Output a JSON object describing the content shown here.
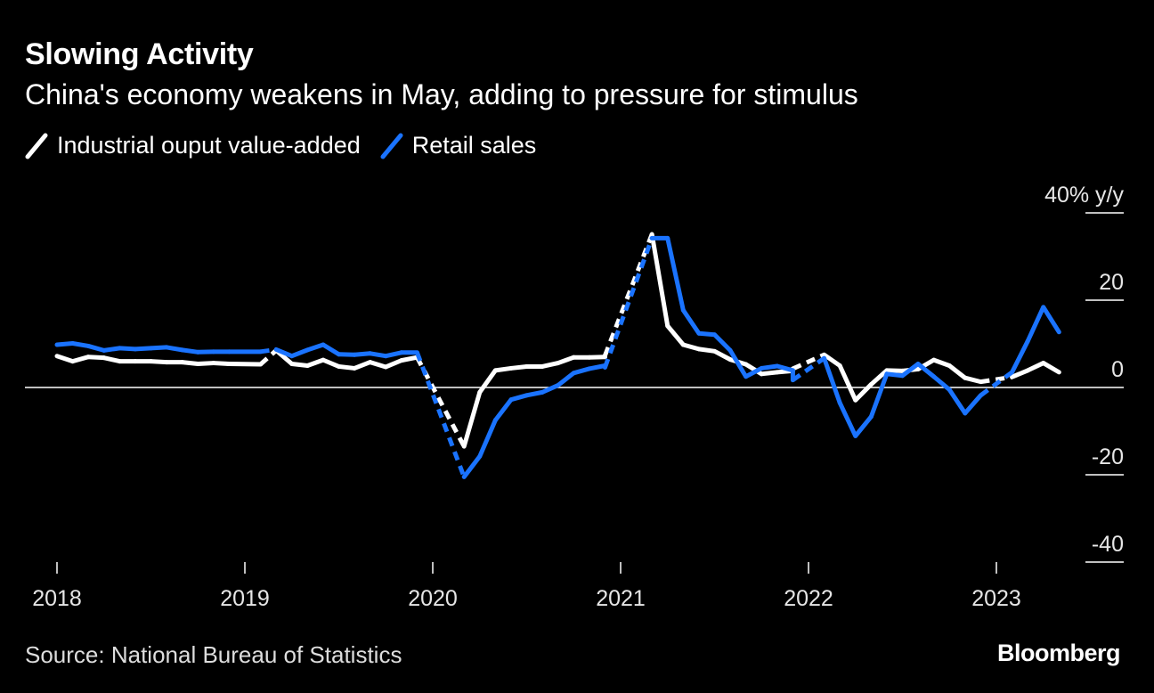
{
  "header": {
    "title": "Slowing Activity",
    "subtitle": "China's economy weakens in May, adding to pressure for stimulus"
  },
  "legend": [
    {
      "label": "Industrial ouput value-added",
      "color": "#ffffff"
    },
    {
      "label": "Retail sales",
      "color": "#1a73ff"
    }
  ],
  "footer": {
    "source": "Source: National Bureau of Statistics",
    "brand": "Bloomberg"
  },
  "chart_data": {
    "type": "line",
    "title": "Slowing Activity",
    "subtitle": "China's economy weakens in May, adding to pressure for stimulus",
    "ylabel_unit": "40% y/y",
    "ylim": [
      -40,
      40
    ],
    "yticks": [
      {
        "value": 40,
        "label": "40% y/y"
      },
      {
        "value": 20,
        "label": "20"
      },
      {
        "value": 0,
        "label": "0"
      },
      {
        "value": -20,
        "label": "-20"
      },
      {
        "value": -40,
        "label": "-40"
      }
    ],
    "xlim": [
      "2018-01",
      "2023-07"
    ],
    "xticks": [
      "2018",
      "2019",
      "2020",
      "2021",
      "2022",
      "2023"
    ],
    "legend_position": "top-left",
    "zero_line": true,
    "series": [
      {
        "name": "Industrial ouput value-added",
        "color": "#ffffff",
        "dashed_segments": [
          [
            "2019-02",
            "2019-03"
          ],
          [
            "2019-12",
            "2020-03"
          ],
          [
            "2020-12",
            "2021-03"
          ],
          [
            "2021-12",
            "2022-02"
          ],
          [
            "2022-12",
            "2023-02"
          ]
        ],
        "points": [
          [
            "2018-01",
            7.2
          ],
          [
            "2018-02",
            6.0
          ],
          [
            "2018-03",
            7.0
          ],
          [
            "2018-04",
            6.8
          ],
          [
            "2018-05",
            6.0
          ],
          [
            "2018-06",
            6.0
          ],
          [
            "2018-07",
            6.0
          ],
          [
            "2018-08",
            5.8
          ],
          [
            "2018-09",
            5.8
          ],
          [
            "2018-10",
            5.4
          ],
          [
            "2018-11",
            5.6
          ],
          [
            "2018-12",
            5.4
          ],
          [
            "2019-02",
            5.3
          ],
          [
            "2019-03",
            8.5
          ],
          [
            "2019-04",
            5.4
          ],
          [
            "2019-05",
            5.0
          ],
          [
            "2019-06",
            6.3
          ],
          [
            "2019-07",
            4.8
          ],
          [
            "2019-08",
            4.4
          ],
          [
            "2019-09",
            5.8
          ],
          [
            "2019-10",
            4.7
          ],
          [
            "2019-11",
            6.2
          ],
          [
            "2019-12",
            6.9
          ],
          [
            "2020-03",
            -13.5
          ],
          [
            "2020-04",
            -1.1
          ],
          [
            "2020-05",
            3.9
          ],
          [
            "2020-06",
            4.4
          ],
          [
            "2020-07",
            4.8
          ],
          [
            "2020-08",
            4.8
          ],
          [
            "2020-09",
            5.6
          ],
          [
            "2020-10",
            6.9
          ],
          [
            "2020-11",
            6.9
          ],
          [
            "2020-12",
            7.0
          ],
          [
            "2020-12",
            7.3
          ],
          [
            "2021-03",
            35.1
          ],
          [
            "2021-04",
            14.1
          ],
          [
            "2021-05",
            9.8
          ],
          [
            "2021-06",
            8.8
          ],
          [
            "2021-07",
            8.3
          ],
          [
            "2021-08",
            6.4
          ],
          [
            "2021-09",
            5.3
          ],
          [
            "2021-10",
            3.1
          ],
          [
            "2021-11",
            3.5
          ],
          [
            "2021-12",
            3.8
          ],
          [
            "2021-12",
            4.3
          ],
          [
            "2022-02",
            7.5
          ],
          [
            "2022-03",
            5.0
          ],
          [
            "2022-04",
            -2.9
          ],
          [
            "2022-05",
            0.7
          ],
          [
            "2022-06",
            3.9
          ],
          [
            "2022-07",
            3.8
          ],
          [
            "2022-08",
            4.2
          ],
          [
            "2022-09",
            6.3
          ],
          [
            "2022-10",
            5.0
          ],
          [
            "2022-11",
            2.2
          ],
          [
            "2022-12",
            1.3
          ],
          [
            "2023-02",
            2.4
          ],
          [
            "2023-03",
            3.9
          ],
          [
            "2023-04",
            5.6
          ],
          [
            "2023-05",
            3.5
          ]
        ]
      },
      {
        "name": "Retail sales",
        "color": "#1a73ff",
        "dashed_segments": [
          [
            "2019-02",
            "2019-03"
          ],
          [
            "2019-12",
            "2020-03"
          ],
          [
            "2020-12",
            "2021-03"
          ],
          [
            "2021-12",
            "2022-02"
          ],
          [
            "2022-12",
            "2023-02"
          ]
        ],
        "points": [
          [
            "2018-01",
            9.8
          ],
          [
            "2018-02",
            10.1
          ],
          [
            "2018-03",
            9.5
          ],
          [
            "2018-04",
            8.5
          ],
          [
            "2018-05",
            9.0
          ],
          [
            "2018-06",
            8.8
          ],
          [
            "2018-07",
            9.0
          ],
          [
            "2018-08",
            9.2
          ],
          [
            "2018-09",
            8.6
          ],
          [
            "2018-10",
            8.1
          ],
          [
            "2018-11",
            8.2
          ],
          [
            "2018-12",
            8.2
          ],
          [
            "2019-02",
            8.2
          ],
          [
            "2019-03",
            8.7
          ],
          [
            "2019-04",
            7.2
          ],
          [
            "2019-05",
            8.6
          ],
          [
            "2019-06",
            9.8
          ],
          [
            "2019-07",
            7.6
          ],
          [
            "2019-08",
            7.5
          ],
          [
            "2019-09",
            7.8
          ],
          [
            "2019-10",
            7.2
          ],
          [
            "2019-11",
            8.0
          ],
          [
            "2019-12",
            8.0
          ],
          [
            "2020-03",
            -20.5
          ],
          [
            "2020-04",
            -15.8
          ],
          [
            "2020-05",
            -7.5
          ],
          [
            "2020-06",
            -2.8
          ],
          [
            "2020-07",
            -1.8
          ],
          [
            "2020-08",
            -1.1
          ],
          [
            "2020-09",
            0.5
          ],
          [
            "2020-10",
            3.3
          ],
          [
            "2020-11",
            4.3
          ],
          [
            "2020-12",
            5.0
          ],
          [
            "2020-12",
            4.6
          ],
          [
            "2021-03",
            34.2
          ],
          [
            "2021-04",
            34.2
          ],
          [
            "2021-05",
            17.7
          ],
          [
            "2021-06",
            12.4
          ],
          [
            "2021-07",
            12.1
          ],
          [
            "2021-08",
            8.5
          ],
          [
            "2021-09",
            2.5
          ],
          [
            "2021-10",
            4.4
          ],
          [
            "2021-11",
            4.9
          ],
          [
            "2021-12",
            3.9
          ],
          [
            "2021-12",
            1.7
          ],
          [
            "2022-02",
            6.7
          ],
          [
            "2022-03",
            -3.5
          ],
          [
            "2022-04",
            -11.1
          ],
          [
            "2022-05",
            -6.7
          ],
          [
            "2022-06",
            3.1
          ],
          [
            "2022-07",
            2.7
          ],
          [
            "2022-08",
            5.4
          ],
          [
            "2022-09",
            2.5
          ],
          [
            "2022-10",
            -0.5
          ],
          [
            "2022-11",
            -5.9
          ],
          [
            "2022-12",
            -1.8
          ],
          [
            "2023-02",
            3.5
          ],
          [
            "2023-03",
            10.6
          ],
          [
            "2023-04",
            18.4
          ],
          [
            "2023-05",
            12.7
          ]
        ]
      }
    ]
  }
}
